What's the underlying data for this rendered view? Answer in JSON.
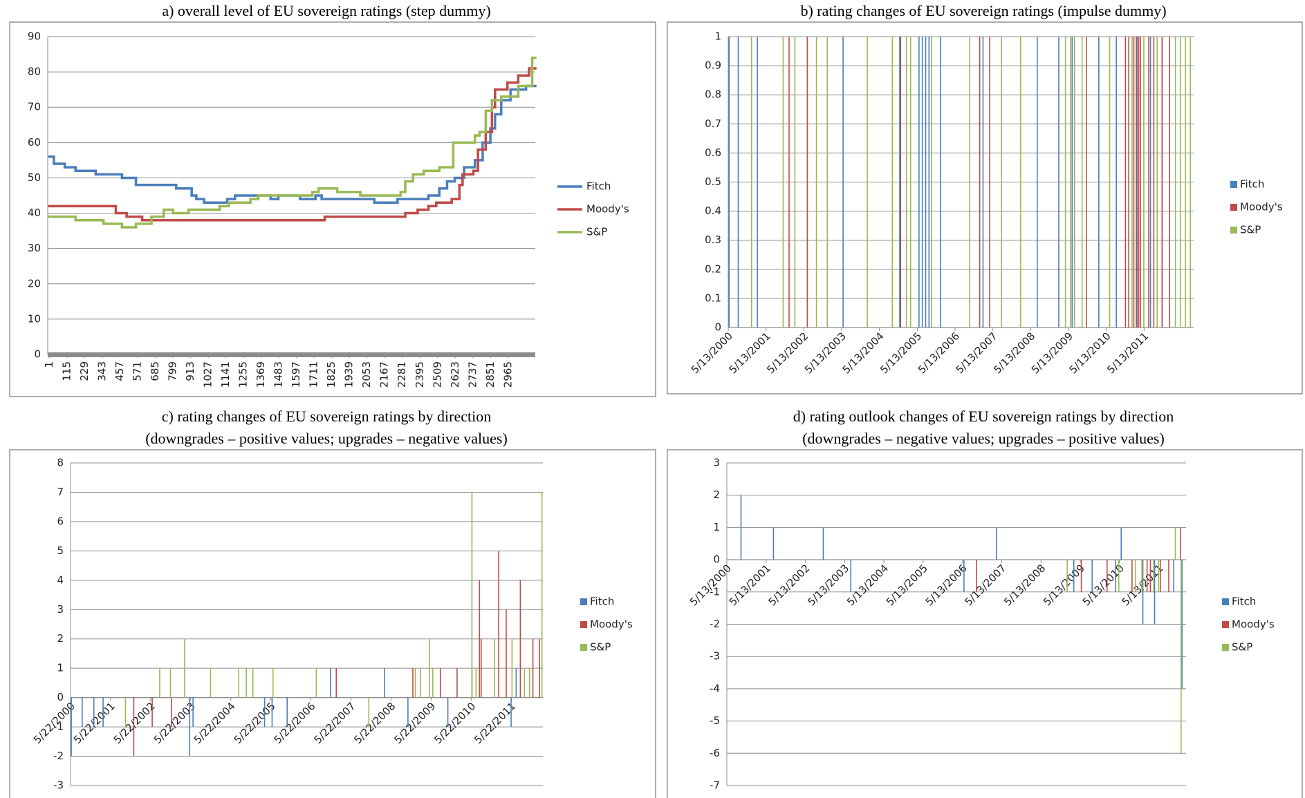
{
  "chart_data": [
    {
      "type": "line",
      "title": "a) overall level of EU sovereign ratings (step dummy)",
      "xlim": [
        -10,
        3140
      ],
      "ylim": [
        0,
        90
      ],
      "yticks": [
        0,
        10,
        20,
        30,
        40,
        50,
        60,
        70,
        80,
        90
      ],
      "grid": true,
      "xticks": [
        1,
        115,
        229,
        343,
        457,
        571,
        685,
        799,
        913,
        1027,
        1141,
        1255,
        1369,
        1483,
        1597,
        1711,
        1825,
        1939,
        2053,
        2167,
        2281,
        2395,
        2509,
        2623,
        2737,
        2851,
        2965
      ],
      "series": [
        {
          "name": "Fitch",
          "color": "#4a7ebb",
          "x": [
            1,
            30,
            100,
            170,
            300,
            470,
            560,
            820,
            920,
            950,
            1000,
            1150,
            1200,
            1430,
            1480,
            1620,
            1720,
            1760,
            2100,
            2250,
            2450,
            2520,
            2570,
            2620,
            2680,
            2750,
            2800,
            2850,
            2880,
            2920,
            2980,
            3080
          ],
          "values": [
            56,
            54,
            53,
            52,
            51,
            50,
            48,
            47,
            45,
            44,
            43,
            44,
            45,
            44,
            45,
            44,
            45,
            44,
            43,
            44,
            45,
            47,
            49,
            50,
            53,
            55,
            60,
            64,
            68,
            72,
            75,
            76
          ]
        },
        {
          "name": "Moody's",
          "color": "#be4b48",
          "x": [
            1,
            430,
            500,
            600,
            1780,
            2300,
            2380,
            2450,
            2500,
            2600,
            2650,
            2670,
            2740,
            2770,
            2820,
            2860,
            2880,
            2960,
            3030,
            3100
          ],
          "values": [
            42,
            40,
            39,
            38,
            39,
            40,
            41,
            42,
            43,
            44,
            48,
            51,
            52,
            58,
            63,
            70,
            75,
            77,
            79,
            81
          ]
        },
        {
          "name": "S&P",
          "color": "#98b954",
          "x": [
            1,
            170,
            350,
            470,
            560,
            660,
            740,
            800,
            900,
            1100,
            1160,
            1300,
            1350,
            1700,
            1740,
            1860,
            2010,
            2270,
            2300,
            2350,
            2420,
            2520,
            2610,
            2750,
            2780,
            2820,
            2860,
            2920,
            3030,
            3120
          ],
          "values": [
            39,
            38,
            37,
            36,
            37,
            39,
            41,
            40,
            41,
            42,
            43,
            44,
            45,
            46,
            47,
            46,
            45,
            46,
            49,
            51,
            52,
            53,
            60,
            62,
            63,
            69,
            72,
            73,
            76,
            84
          ]
        }
      ]
    },
    {
      "type": "bar",
      "title": "b) rating changes of EU sovereign ratings (impulse dummy)",
      "xlim": [
        1,
        3214
      ],
      "ylim": [
        0,
        1
      ],
      "yticks": [
        0,
        0.1,
        0.2,
        0.3,
        0.4,
        0.5,
        0.6,
        0.7,
        0.8,
        0.9,
        1
      ],
      "grid": true,
      "xticks": [
        {
          "value": 1,
          "label": "5/13/2000"
        },
        {
          "value": 262,
          "label": "5/13/2001"
        },
        {
          "value": 523,
          "label": "5/13/2002"
        },
        {
          "value": 784,
          "label": "5/13/2003"
        },
        {
          "value": 1045,
          "label": "5/13/2004"
        },
        {
          "value": 1306,
          "label": "5/13/2005"
        },
        {
          "value": 1567,
          "label": "5/13/2006"
        },
        {
          "value": 1828,
          "label": "5/13/2007"
        },
        {
          "value": 2089,
          "label": "5/13/2008"
        },
        {
          "value": 2350,
          "label": "5/13/2009"
        },
        {
          "value": 2611,
          "label": "5/13/2010"
        },
        {
          "value": 2872,
          "label": "5/13/2011"
        }
      ],
      "series": [
        {
          "name": "Fitch",
          "color": "#4a7ebb",
          "x": [
            7,
            70,
            202,
            794,
            1185,
            1318,
            1341,
            1364,
            1387,
            1467,
            1760,
            2134,
            2283,
            2375,
            2559,
            2680,
            2824,
            2916,
            2996
          ],
          "values": [
            1,
            1,
            1,
            1,
            1,
            1,
            1,
            1,
            1,
            1,
            1,
            1,
            1,
            1,
            1,
            1,
            1,
            1,
            1
          ]
        },
        {
          "name": "Moody's",
          "color": "#be4b48",
          "x": [
            421,
            547,
            1191,
            1737,
            1806,
            2473,
            2743,
            2766,
            2801,
            2818,
            2835,
            2847,
            2904,
            2939,
            2996,
            3048
          ],
          "values": [
            1,
            1,
            1,
            1,
            1,
            1,
            1,
            1,
            1,
            1,
            1,
            1,
            1,
            1,
            1,
            1
          ]
        },
        {
          "name": "S&P",
          "color": "#98b954",
          "x": [
            162,
            380,
            461,
            610,
            685,
            961,
            1134,
            1231,
            1260,
            1404,
            1668,
            1887,
            2019,
            2329,
            2364,
            2392,
            2444,
            2634,
            2789,
            2870,
            2962,
            3088,
            3122,
            3157,
            3191
          ],
          "values": [
            1,
            1,
            1,
            1,
            1,
            1,
            1,
            1,
            1,
            1,
            1,
            1,
            1,
            1,
            1,
            1,
            1,
            1,
            1,
            1,
            1,
            1,
            1,
            1,
            1
          ]
        }
      ]
    },
    {
      "type": "bar",
      "title": "c) rating changes of EU sovereign ratings by direction",
      "subtitle": "(downgrades – positive values; upgrades – negative values)",
      "xlim": [
        1,
        3078
      ],
      "ylim": [
        -3,
        8
      ],
      "yticks": [
        -3,
        -2,
        -1,
        0,
        1,
        2,
        3,
        4,
        5,
        6,
        7,
        8
      ],
      "grid": true,
      "xticks": [
        {
          "value": 1,
          "label": "5/22/2000"
        },
        {
          "value": 262,
          "label": "5/22/2001"
        },
        {
          "value": 523,
          "label": "5/22/2002"
        },
        {
          "value": 784,
          "label": "5/22/2003"
        },
        {
          "value": 1045,
          "label": "5/22/2004"
        },
        {
          "value": 1306,
          "label": "5/22/2005"
        },
        {
          "value": 1567,
          "label": "5/22/2006"
        },
        {
          "value": 1828,
          "label": "5/22/2007"
        },
        {
          "value": 2089,
          "label": "5/22/2008"
        },
        {
          "value": 2350,
          "label": "5/22/2009"
        },
        {
          "value": 2611,
          "label": "5/22/2010"
        },
        {
          "value": 2872,
          "label": "5/22/2011"
        }
      ],
      "series": [
        {
          "name": "Fitch",
          "color": "#4a7ebb",
          "x": [
            6,
            77,
            153,
            213,
            777,
            799,
            1265,
            1314,
            1412,
            1694,
            2047,
            2199,
            2459,
            2871,
            2904
          ],
          "values": [
            -2,
            -1,
            -1,
            -1,
            -2,
            -1,
            -1,
            -1,
            -1,
            1,
            1,
            -1,
            -1,
            -1,
            1
          ]
        },
        {
          "name": "Moody's",
          "color": "#be4b48",
          "x": [
            413,
            533,
            658,
            1732,
            2231,
            2410,
            2519,
            2616,
            2665,
            2676,
            2790,
            2839,
            2931,
            3013,
            3056
          ],
          "values": [
            -2,
            -1,
            -1,
            1,
            1,
            1,
            1,
            1,
            4,
            2,
            5,
            3,
            4,
            2,
            2
          ]
        },
        {
          "name": "S&P",
          "color": "#98b954",
          "x": [
            359,
            582,
            652,
            744,
            913,
            1097,
            1146,
            1189,
            1320,
            1602,
            1944,
            2247,
            2280,
            2340,
            2361,
            2616,
            2643,
            2763,
            2877,
            2958,
            2991,
            3072
          ],
          "values": [
            -1,
            1,
            1,
            2,
            1,
            1,
            1,
            1,
            1,
            1,
            -1,
            1,
            1,
            2,
            1,
            7,
            1,
            2,
            2,
            1,
            1,
            7
          ]
        }
      ]
    },
    {
      "type": "bar",
      "title": "d) rating outlook changes of EU sovereign ratings by direction",
      "subtitle": "(downgrades – negative values; upgrades – positive values)",
      "xlim": [
        1,
        3053
      ],
      "ylim": [
        -7,
        3
      ],
      "yticks": [
        -7,
        -6,
        -5,
        -4,
        -3,
        -2,
        -1,
        0,
        1,
        2,
        3
      ],
      "grid": true,
      "xticks": [
        {
          "value": 1,
          "label": "5/13/2000"
        },
        {
          "value": 262,
          "label": "5/13/2001"
        },
        {
          "value": 523,
          "label": "5/13/2002"
        },
        {
          "value": 784,
          "label": "5/13/2003"
        },
        {
          "value": 1045,
          "label": "5/13/2004"
        },
        {
          "value": 1306,
          "label": "5/13/2005"
        },
        {
          "value": 1567,
          "label": "5/13/2006"
        },
        {
          "value": 1828,
          "label": "5/13/2007"
        },
        {
          "value": 2089,
          "label": "5/13/2008"
        },
        {
          "value": 2350,
          "label": "5/13/2009"
        },
        {
          "value": 2611,
          "label": "5/13/2010"
        },
        {
          "value": 2872,
          "label": "5/13/2011"
        }
      ],
      "series": [
        {
          "name": "Fitch",
          "color": "#4a7ebb",
          "x": [
            95,
            311,
            642,
            825,
            1577,
            1793,
            2307,
            2429,
            2584,
            2622,
            2766,
            2844,
            2971,
            3026
          ],
          "values": [
            2,
            1,
            1,
            -1,
            -1,
            1,
            -1,
            -1,
            -1,
            1,
            -2,
            -2,
            -1,
            -4
          ]
        },
        {
          "name": "Moody's",
          "color": "#be4b48",
          "x": [
            1660,
            2357,
            2528,
            2694,
            2794,
            2816,
            2882,
            2938,
            3015
          ],
          "values": [
            -1,
            -1,
            -1,
            -1,
            -1,
            -1,
            -1,
            -1,
            1
          ]
        },
        {
          "name": "S&P",
          "color": "#98b954",
          "x": [
            2263,
            2606,
            2716,
            2760,
            2838,
            2871,
            2982,
            3020
          ],
          "values": [
            -1,
            -1,
            -1,
            -1,
            -1,
            -1,
            1,
            -6
          ]
        }
      ]
    }
  ]
}
